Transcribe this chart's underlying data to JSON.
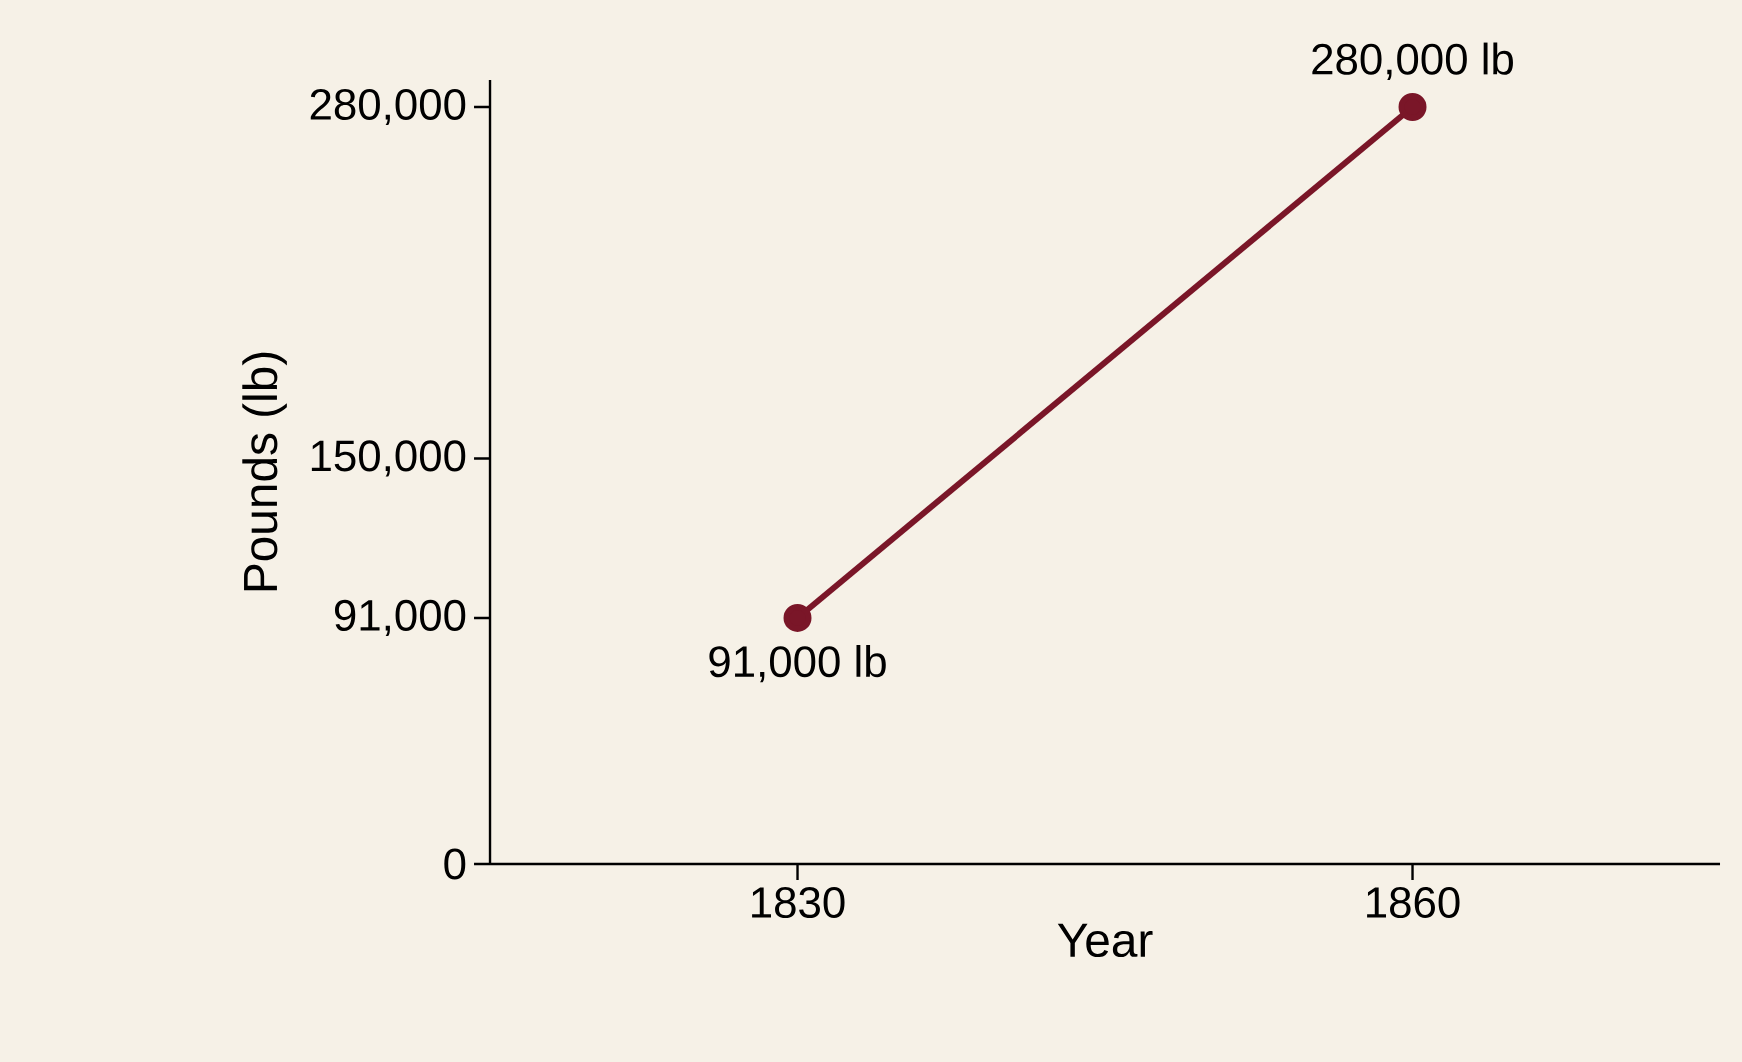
{
  "chart_data": {
    "type": "line",
    "xlabel": "Year",
    "ylabel": "Pounds (lb)",
    "x": [
      1830,
      1860
    ],
    "series": [
      {
        "color": "#7a1628",
        "values": [
          91000,
          280000
        ],
        "value_labels": [
          "91,000 lb",
          "280,000 lb"
        ]
      }
    ],
    "xlim": [
      1815,
      1875
    ],
    "ylim": [
      0,
      290000
    ],
    "xticks": [
      1830,
      1860
    ],
    "yticks": [
      0,
      {
        "value": 91000,
        "label": "91,000"
      },
      {
        "value": 150000,
        "label": "150,000"
      },
      {
        "value": 280000,
        "label": "280,000"
      }
    ],
    "marker": "circle",
    "line_style": "solid"
  }
}
